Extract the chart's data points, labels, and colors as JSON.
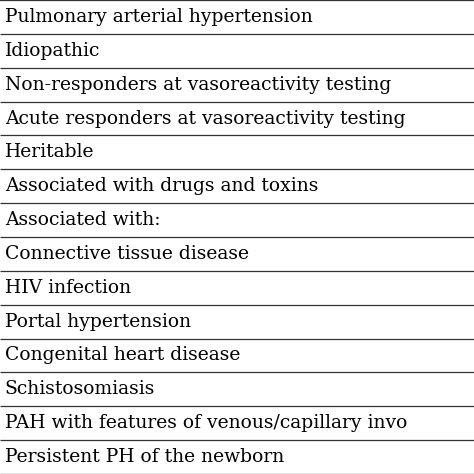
{
  "rows": [
    "Pulmonary arterial hypertension",
    "Idiopathic",
    "Non-responders at vasoreactivity testing",
    "Acute responders at vasoreactivity testing",
    "Heritable",
    "Associated with drugs and toxins",
    "Associated with:",
    "Connective tissue disease",
    "HIV infection",
    "Portal hypertension",
    "Congenital heart disease",
    "Schistosomiasis",
    "PAH with features of venous/capillary invo",
    "Persistent PH of the newborn"
  ],
  "background_color": "#ffffff",
  "text_color": "#000000",
  "line_color": "#333333",
  "font_size": 13.5,
  "font_family": "serif"
}
